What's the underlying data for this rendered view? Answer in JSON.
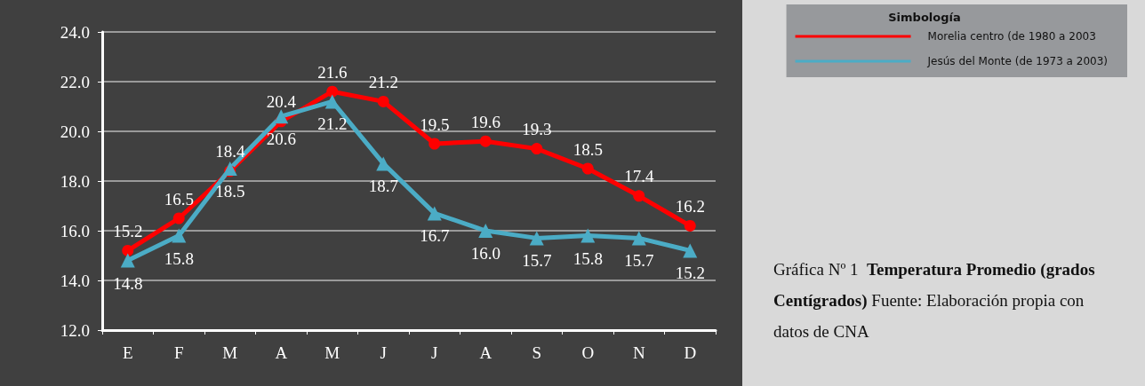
{
  "chart_data": {
    "type": "line",
    "title": "Temperatura Promedio (grados Centígrados)",
    "annotations": [
      "Gráfica Nº 1",
      "Fuente: Elaboración propia con datos de CNA"
    ],
    "legend_title": "Simbología",
    "categories": [
      "E",
      "F",
      "M",
      "A",
      "M",
      "J",
      "J",
      "A",
      "S",
      "O",
      "N",
      "D"
    ],
    "series": [
      {
        "name": "Morelia centro (de 1980 a 2003",
        "color": "#ff0000",
        "marker": "circle",
        "values": [
          15.2,
          16.5,
          18.4,
          20.4,
          21.6,
          21.2,
          19.5,
          19.6,
          19.3,
          18.5,
          17.4,
          16.2
        ],
        "value_labels": [
          "15.2",
          "16.5",
          "18.4",
          "20.4",
          "21.6",
          "21.2",
          "19.5",
          "19.6",
          "19.3",
          "18.5",
          "17.4",
          "16.2"
        ]
      },
      {
        "name": "Jesús del Monte (de 1973 a 2003)",
        "color": "#4bacc6",
        "marker": "triangle",
        "values": [
          14.8,
          15.8,
          18.5,
          20.6,
          21.2,
          18.7,
          16.7,
          16.0,
          15.7,
          15.8,
          15.7,
          15.2
        ],
        "value_labels": [
          "14.8",
          "15.8",
          "18.5",
          "20.6",
          "21.2",
          "18.7",
          "16.7",
          "16.0",
          "15.7",
          "15.8",
          "15.7",
          "15.2"
        ]
      }
    ],
    "ylim": [
      12,
      24
    ],
    "yticks": [
      {
        "value": 12,
        "label": "12.0"
      },
      {
        "value": 14,
        "label": "14.0"
      },
      {
        "value": 16,
        "label": "16.0"
      },
      {
        "value": 18,
        "label": "18.0"
      },
      {
        "value": 20,
        "label": "20.0"
      },
      {
        "value": 22,
        "label": "22.0"
      },
      {
        "value": 24,
        "label": "24.0"
      }
    ],
    "grid": "y",
    "legend": "top right",
    "line_style": "solid"
  }
}
